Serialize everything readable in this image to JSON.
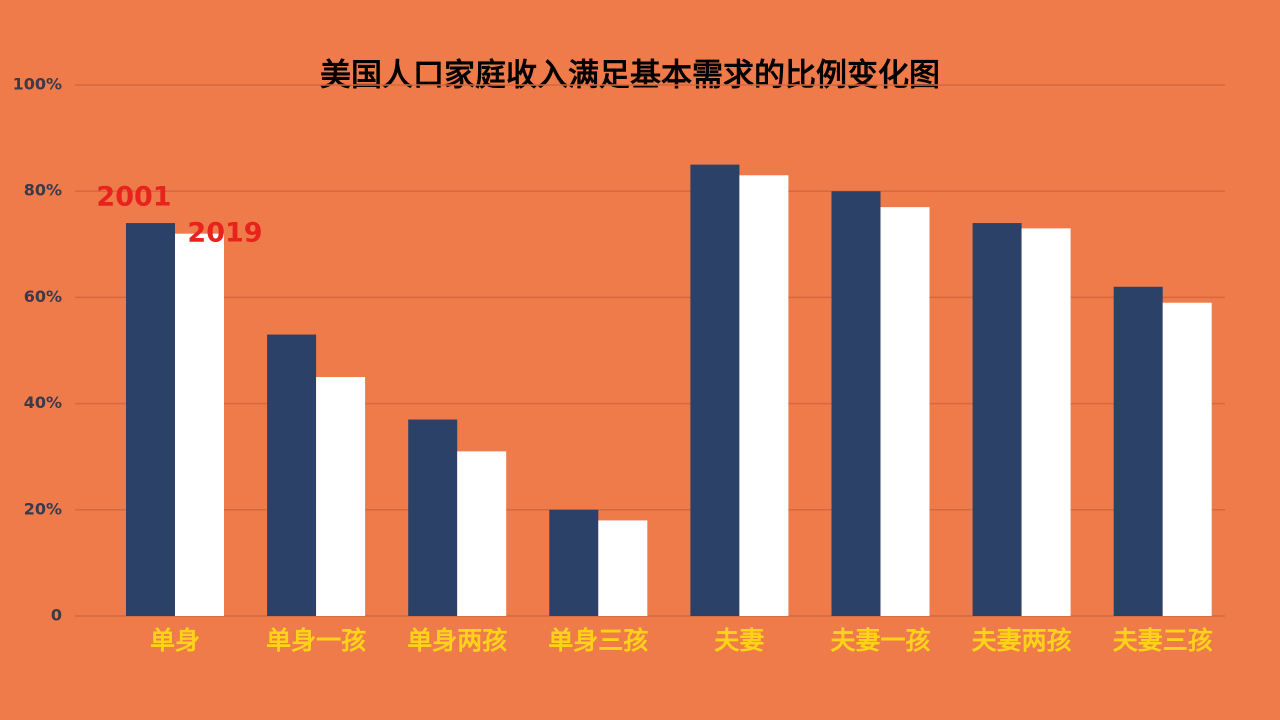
{
  "chart_data": {
    "type": "bar",
    "title": "美国人口家庭收入满足基本需求的比例变化图",
    "categories": [
      "单身",
      "单身一孩",
      "单身两孩",
      "单身三孩",
      "夫妻",
      "夫妻一孩",
      "夫妻两孩",
      "夫妻三孩"
    ],
    "series": [
      {
        "name": "2001",
        "color": "#2b4168",
        "values": [
          74,
          53,
          37,
          20,
          85,
          80,
          74,
          62
        ]
      },
      {
        "name": "2019",
        "color": "#ffffff",
        "values": [
          72,
          45,
          31,
          18,
          83,
          77,
          73,
          59
        ]
      }
    ],
    "ylim": [
      0,
      100
    ],
    "yticks": [
      0,
      {
        "value": 20,
        "label": "20%"
      },
      {
        "value": 40,
        "label": "40%"
      },
      {
        "value": 60,
        "label": "60%"
      },
      {
        "value": 80,
        "label": "80%"
      },
      {
        "value": 100,
        "label": "100%"
      }
    ],
    "grid": true
  }
}
